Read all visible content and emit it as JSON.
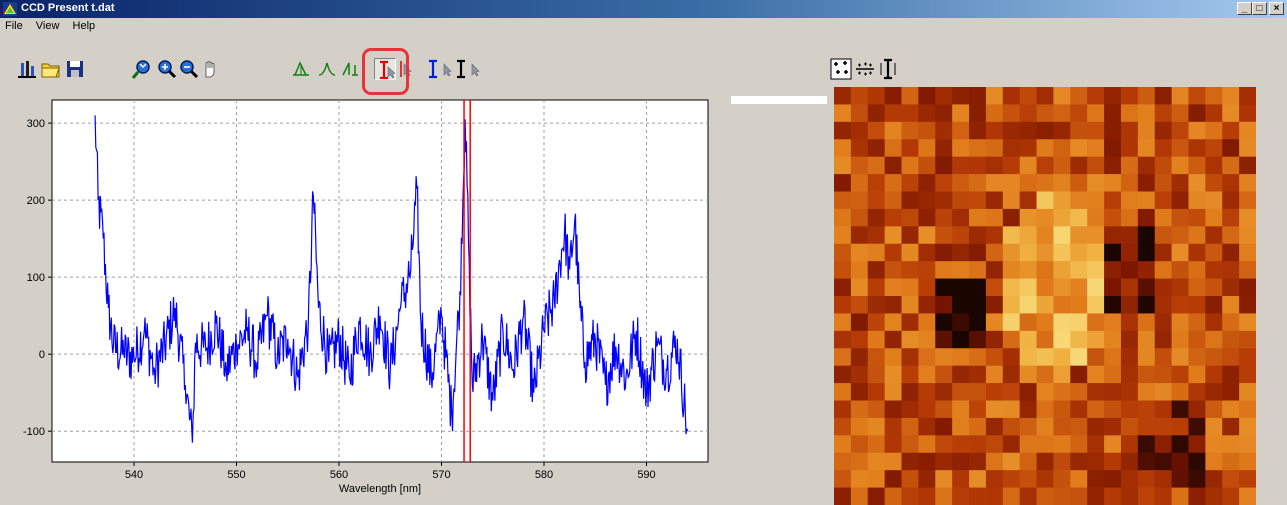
{
  "window": {
    "title": "CCD Present t.dat",
    "minimize": "_",
    "maximize": "□",
    "close": "×"
  },
  "menu": [
    "File",
    "View",
    "Help"
  ],
  "toolbar": {
    "icons": [
      "bar-spectrum-icon",
      "open-folder-icon",
      "save-disk-icon",
      "zoom-fit-icon",
      "zoom-in-icon",
      "zoom-out-icon",
      "pan-hand-icon",
      "peak-triangle-icon",
      "peak-fit-icon",
      "peak-area-icon",
      "red-cursor-icon",
      "red-arrow-cursor-icon",
      "blue-cursor-icon",
      "blue-arrow-cursor-icon",
      "black-cursor-icon",
      "black-arrow-cursor-icon",
      "scatter-points-icon",
      "grid-dots-icon",
      "bar-range-icon"
    ],
    "selected": "red-cursor-icon"
  },
  "chart_data": {
    "type": "line",
    "xlabel": "Wavelength [nm]",
    "ylabel": "",
    "xlim": [
      532,
      596
    ],
    "ylim": [
      -140,
      330
    ],
    "xticks": [
      540,
      550,
      560,
      570,
      580,
      590
    ],
    "yticks": [
      -100,
      0,
      100,
      200,
      300
    ],
    "grid": true,
    "color": "#0000ff",
    "cursor_lines": [
      572.2,
      572.8
    ],
    "cursor_color": "#ff0000",
    "series": [
      {
        "x": [
          536.2,
          536.5,
          537,
          537.5,
          538,
          539,
          540,
          541,
          542,
          543,
          544,
          545,
          545.7,
          546,
          547,
          548,
          549,
          550,
          551,
          552,
          553,
          554,
          555,
          556,
          557,
          557.5,
          558,
          559,
          560,
          561,
          562,
          563,
          564,
          565,
          566,
          567,
          567.6,
          568,
          569,
          570,
          571,
          571.8,
          572.3,
          572.7,
          573,
          574,
          575,
          576,
          577,
          578,
          579,
          580,
          581,
          582,
          582.5,
          583,
          583.5,
          584,
          585,
          586,
          587,
          588,
          589,
          590,
          591,
          592,
          593,
          594
        ],
        "y": [
          310,
          200,
          150,
          60,
          10,
          0,
          -5,
          30,
          -20,
          10,
          60,
          -40,
          -115,
          15,
          5,
          40,
          -20,
          10,
          30,
          -10,
          50,
          0,
          20,
          -30,
          40,
          205,
          60,
          -10,
          20,
          -30,
          40,
          0,
          50,
          -20,
          60,
          110,
          215,
          40,
          -30,
          50,
          -80,
          80,
          305,
          120,
          -40,
          20,
          -60,
          30,
          -20,
          50,
          -50,
          30,
          70,
          160,
          110,
          175,
          60,
          -10,
          20,
          -40,
          10,
          -30,
          30,
          -50,
          10,
          -20,
          20,
          -100
        ]
      }
    ]
  },
  "image_map": {
    "colormap": [
      "#1a0500",
      "#7a1500",
      "#b53a05",
      "#e07a1a",
      "#f0b040",
      "#f8e080"
    ],
    "rows": 24,
    "cols": 25
  }
}
